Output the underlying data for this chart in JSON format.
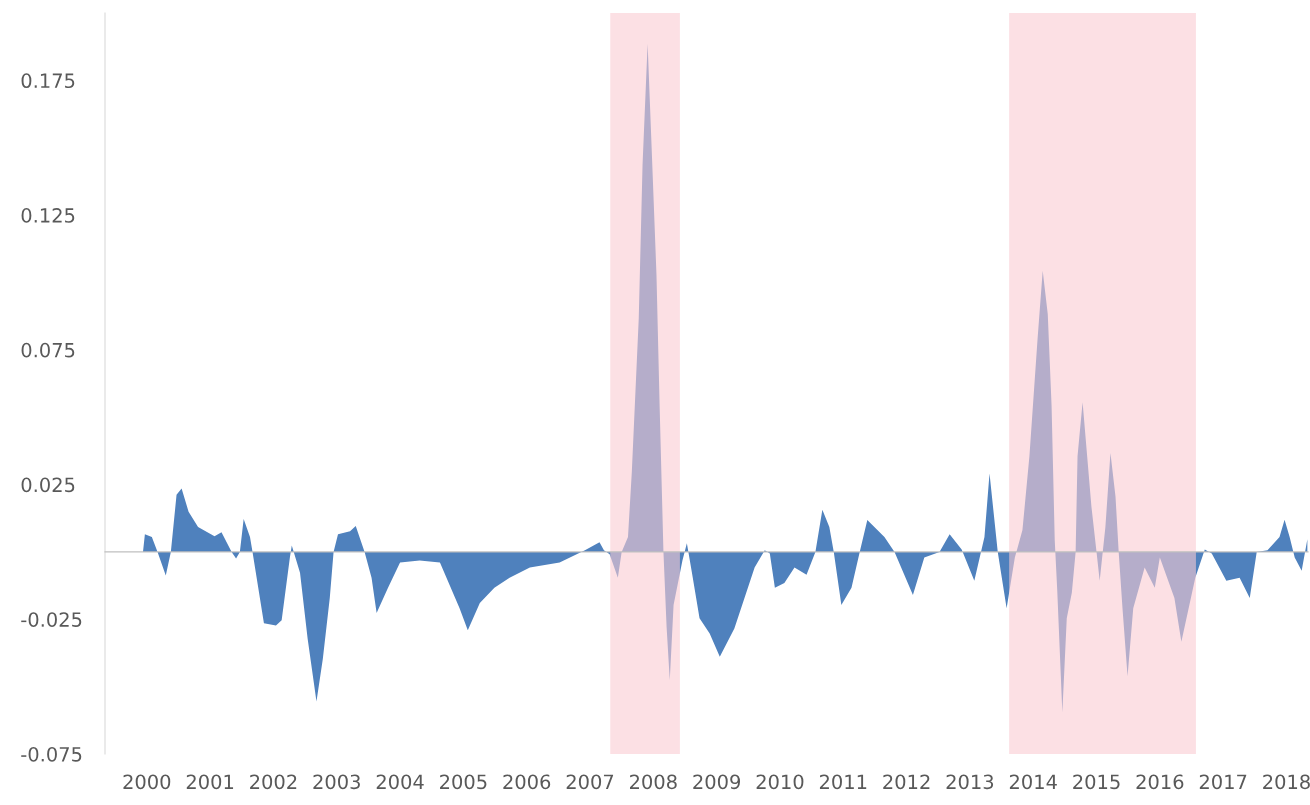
{
  "chart_data": {
    "type": "area",
    "series": [
      {
        "color": "#4f81bd",
        "x": [
          1999.34,
          1999.94,
          1999.97,
          2000.08,
          2000.17,
          2000.3,
          2000.38,
          2000.47,
          2000.55,
          2000.66,
          2000.81,
          2001.07,
          2001.18,
          2001.34,
          2001.41,
          2001.47,
          2001.53,
          2001.63,
          2001.67,
          2001.85,
          2002.04,
          2002.13,
          2002.26,
          2002.29,
          2002.42,
          2002.54,
          2002.68,
          2002.78,
          2002.89,
          2002.95,
          2003.02,
          2003.21,
          2003.3,
          2003.44,
          2003.55,
          2003.63,
          2003.81,
          2004.0,
          2004.31,
          2004.63,
          2004.94,
          2005.07,
          2005.26,
          2005.49,
          2005.73,
          2006.05,
          2006.52,
          2006.92,
          2007.15,
          2007.22,
          2007.31,
          2007.44,
          2007.5,
          2007.6,
          2007.66,
          2007.77,
          2007.83,
          2007.91,
          2007.97,
          2008.05,
          2008.1,
          2008.16,
          2008.21,
          2008.26,
          2008.32,
          2008.46,
          2008.53,
          2008.61,
          2008.73,
          2008.89,
          2009.05,
          2009.28,
          2009.6,
          2009.76,
          2009.84,
          2009.92,
          2010.07,
          2010.23,
          2010.42,
          2010.56,
          2010.67,
          2010.78,
          2010.85,
          2010.97,
          2011.13,
          2011.26,
          2011.38,
          2011.65,
          2011.81,
          2012.1,
          2012.28,
          2012.52,
          2012.68,
          2012.87,
          2013.07,
          2013.23,
          2013.31,
          2013.44,
          2013.58,
          2013.71,
          2013.83,
          2013.94,
          2014.07,
          2014.15,
          2014.23,
          2014.29,
          2014.34,
          2014.38,
          2014.46,
          2014.53,
          2014.61,
          2014.67,
          2014.7,
          2014.78,
          2014.92,
          2015.0,
          2015.05,
          2015.14,
          2015.22,
          2015.3,
          2015.35,
          2015.41,
          2015.49,
          2015.58,
          2015.76,
          2015.92,
          2016.0,
          2016.23,
          2016.34,
          2016.56,
          2016.71,
          2016.82,
          2017.05,
          2017.26,
          2017.42,
          2017.53,
          2017.7,
          2017.89,
          2017.97,
          2018.05,
          2018.13,
          2018.24,
          2018.33
        ],
        "values": [
          0,
          0,
          0.0066,
          0.0055,
          0,
          -0.0088,
          0,
          0.0212,
          0.0235,
          0.0149,
          0.0092,
          0.0058,
          0.0073,
          0,
          -0.0024,
          0,
          0.0122,
          0.0055,
          0,
          -0.0265,
          -0.0273,
          -0.0254,
          -0.0021,
          0.0024,
          -0.0077,
          -0.0321,
          -0.0555,
          -0.0397,
          -0.0171,
          0,
          0.0066,
          0.0077,
          0.0096,
          0,
          -0.0096,
          -0.0227,
          -0.0133,
          -0.0039,
          -0.0032,
          -0.0039,
          -0.0209,
          -0.0291,
          -0.019,
          -0.0133,
          -0.0096,
          -0.0058,
          -0.0039,
          0.0006,
          0.0036,
          0.0006,
          -0.0009,
          -0.0096,
          0,
          0.0055,
          0.0295,
          0.0867,
          0.1438,
          0.1886,
          0.1521,
          0.1028,
          0.054,
          0,
          -0.028,
          -0.0476,
          -0.0197,
          -0.0032,
          0.0032,
          -0.0077,
          -0.0246,
          -0.0303,
          -0.0389,
          -0.0284,
          -0.0058,
          0.0006,
          -0.0006,
          -0.0133,
          -0.0115,
          -0.0058,
          -0.0085,
          0,
          0.0156,
          0.0092,
          0,
          -0.0197,
          -0.0133,
          0,
          0.0118,
          0.0055,
          0,
          -0.016,
          -0.0021,
          0,
          0.0066,
          0.0009,
          -0.0107,
          0.0055,
          0.0291,
          0,
          -0.0209,
          -0.0021,
          0.0081,
          0.0355,
          0.0795,
          0.1043,
          0.0882,
          0.0543,
          0.0043,
          -0.0145,
          -0.0596,
          -0.0246,
          -0.0152,
          0,
          0.0355,
          0.0555,
          0.0167,
          0,
          -0.0107,
          0.0092,
          0.0367,
          0.0205,
          0,
          -0.0209,
          -0.0461,
          -0.0209,
          -0.0058,
          -0.0133,
          -0.0021,
          -0.0171,
          -0.0333,
          -0.0096,
          0.0009,
          -0.0006,
          -0.0107,
          -0.0096,
          -0.0171,
          0,
          0.0006,
          0.0055,
          0.0119,
          0.0055,
          -0.0021,
          -0.007,
          0.0047
        ]
      }
    ],
    "xlim": [
      1999.34,
      2018.34
    ],
    "xticks": [
      2000,
      2001,
      2002,
      2003,
      2004,
      2005,
      2006,
      2007,
      2008,
      2009,
      2010,
      2011,
      2012,
      2013,
      2014,
      2015,
      2016,
      2017,
      2018
    ],
    "ylim": [
      -0.075,
      0.2
    ],
    "yticks": [
      -0.075,
      -0.025,
      0.025,
      0.075,
      0.125,
      0.175
    ],
    "bands": [
      {
        "axis": "x",
        "from": 2007.32,
        "to": 2008.42,
        "color": "#facbd2"
      },
      {
        "axis": "x",
        "from": 2013.62,
        "to": 2016.57,
        "color": "#facbd2"
      }
    ],
    "grid": false,
    "legend": false
  }
}
